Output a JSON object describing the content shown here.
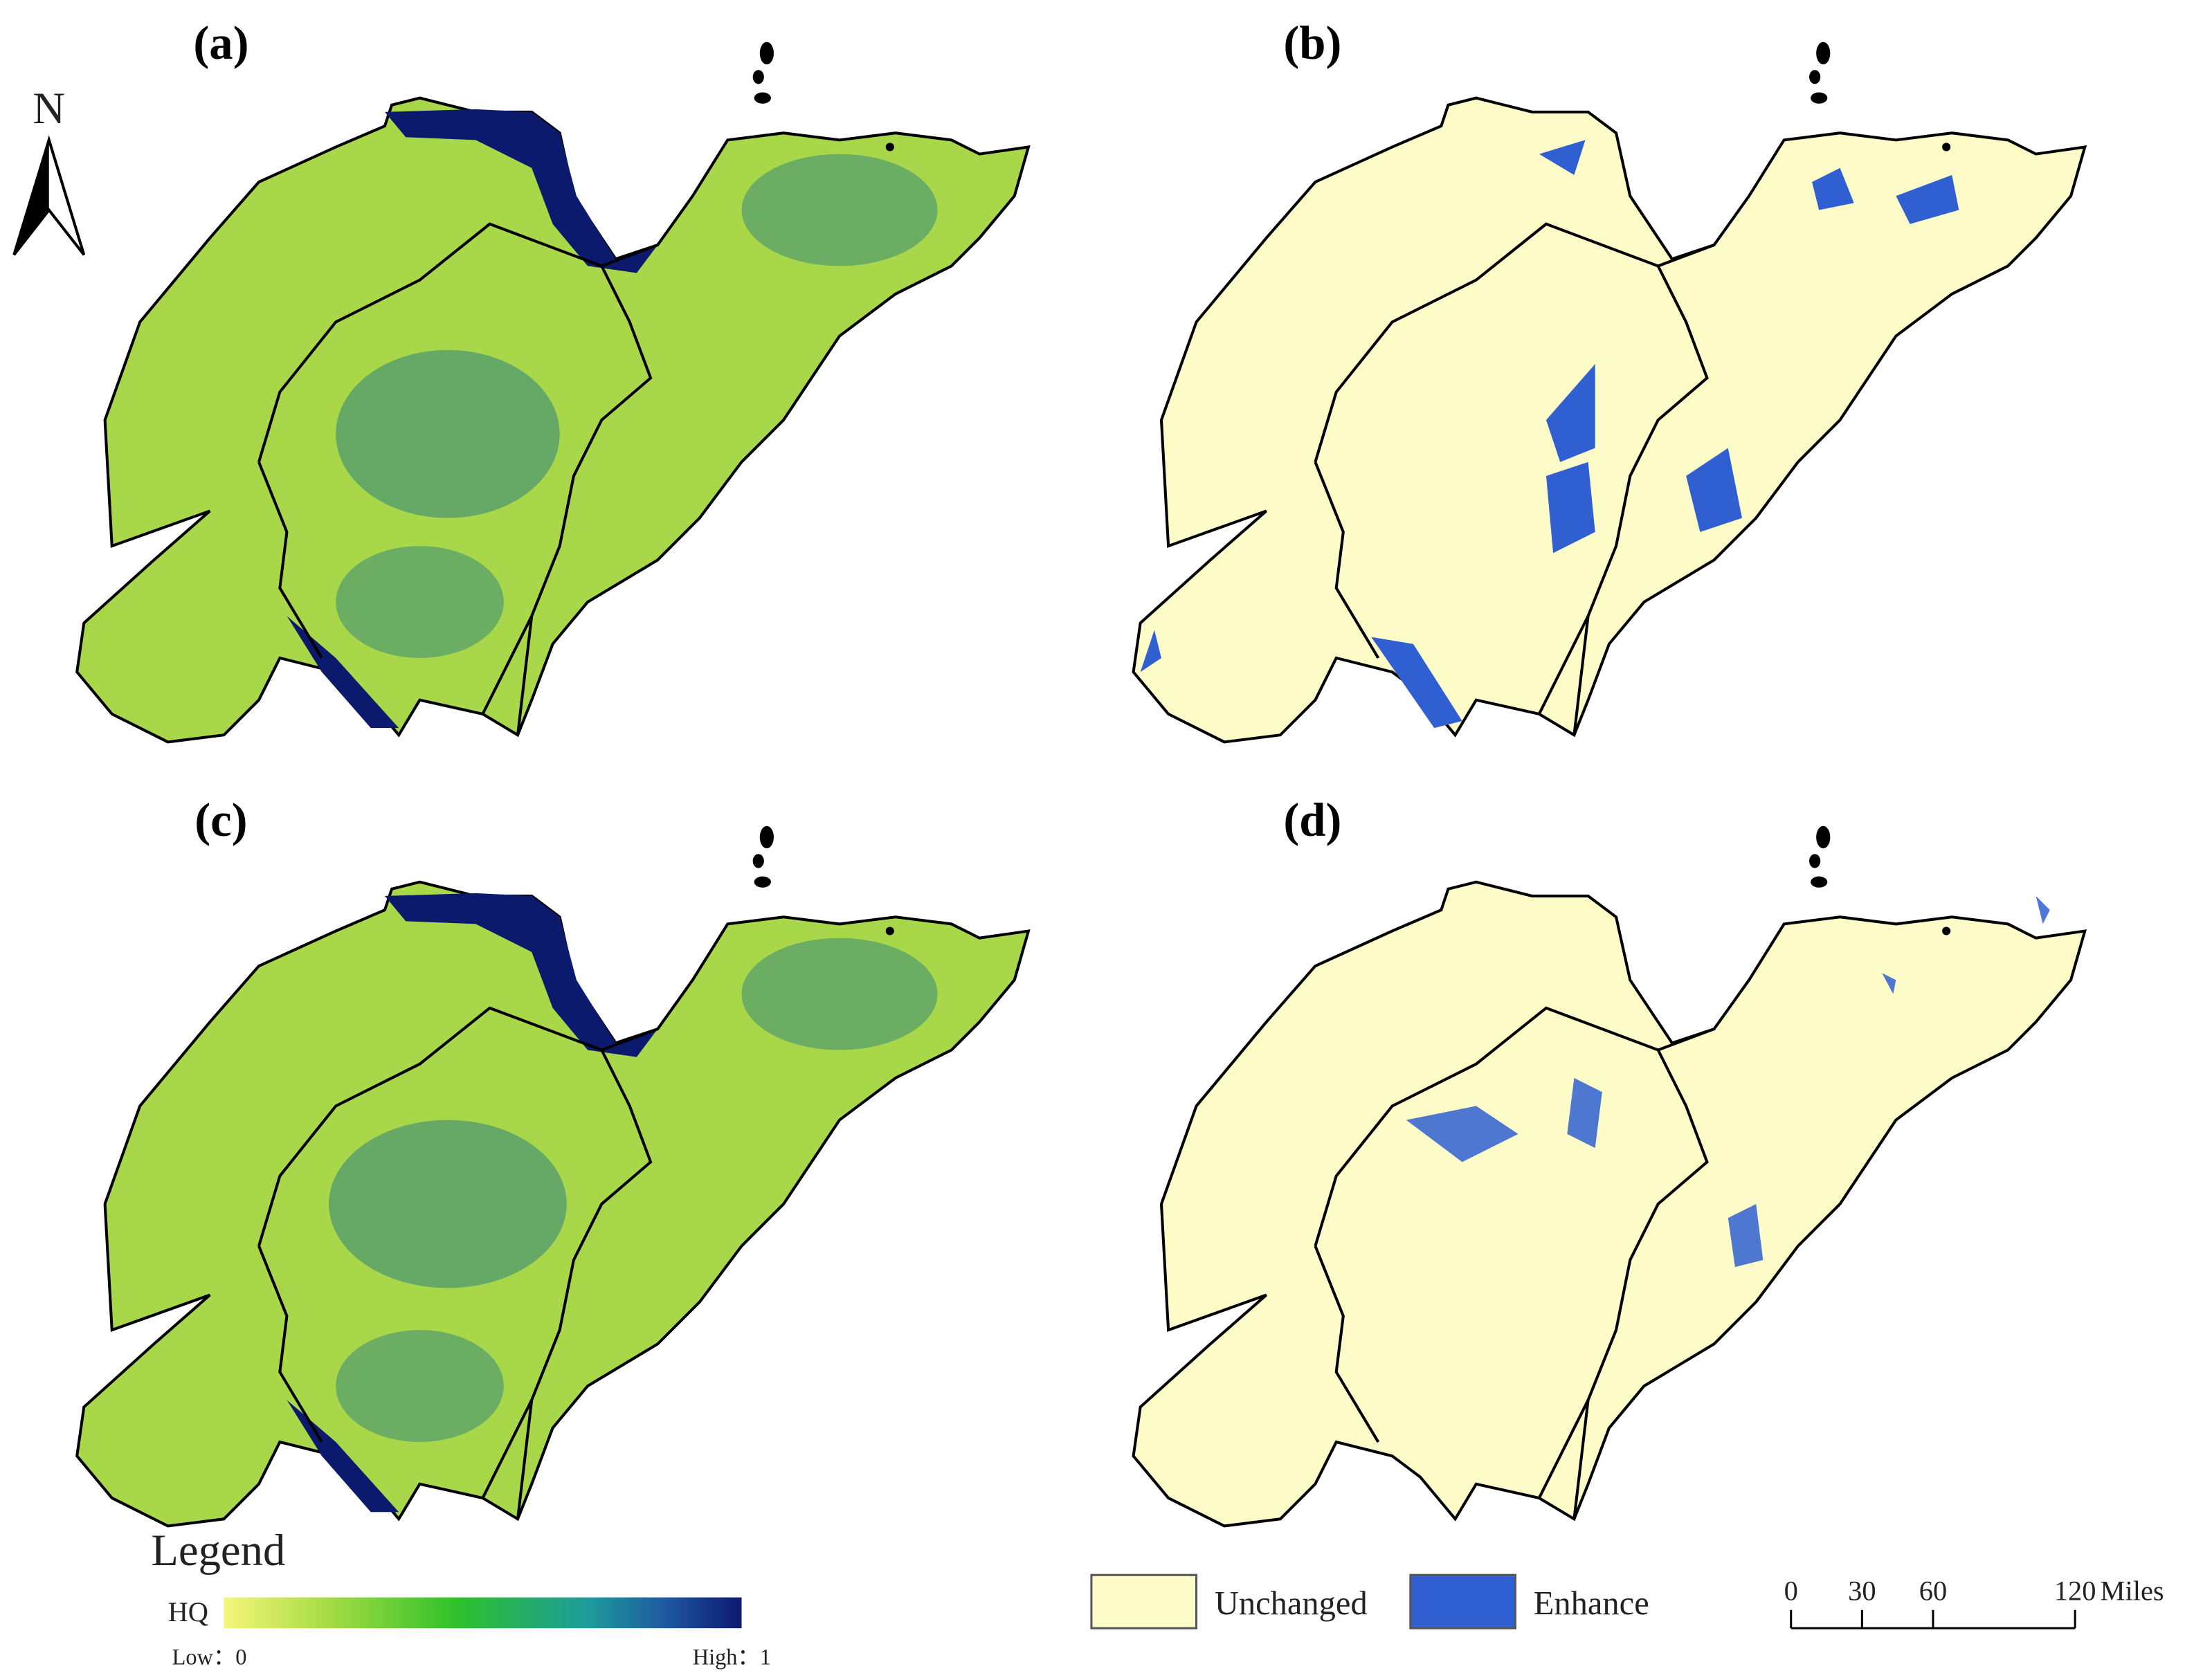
{
  "panels": [
    {
      "label": "(a)"
    },
    {
      "label": "(b)"
    },
    {
      "label": "(c)"
    },
    {
      "label": "(d)"
    }
  ],
  "north_arrow": "N",
  "hq_legend": {
    "title": "Legend",
    "name": "HQ",
    "low": "Low：0",
    "high": "High：1"
  },
  "change_legend": [
    {
      "name": "Unchanged",
      "color": "#fdfbc8"
    },
    {
      "name": "Enhance",
      "color": "#2f5fd0"
    }
  ],
  "scale_bar": {
    "ticks": [
      0,
      30,
      60,
      120
    ],
    "unit": "Miles"
  }
}
